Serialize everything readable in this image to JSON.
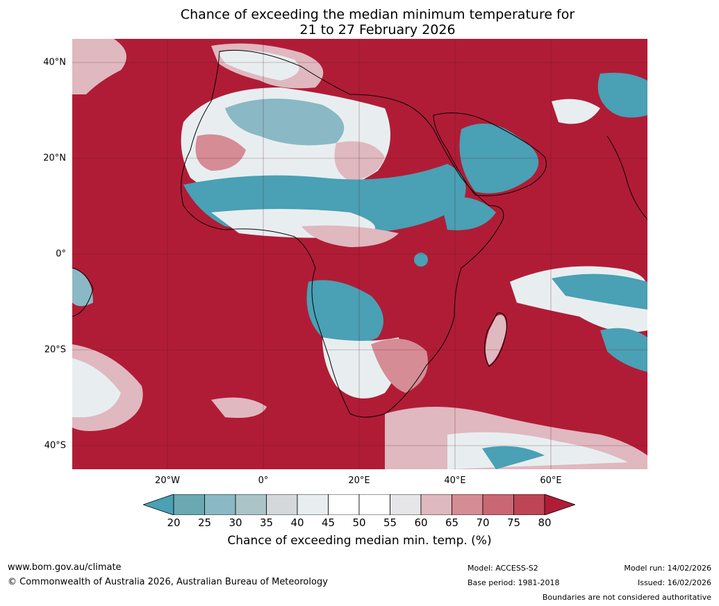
{
  "title": {
    "line1": "Chance of exceeding the median minimum temperature for",
    "line2": "21 to 27 February 2026"
  },
  "map": {
    "lat_labels": [
      "40°N",
      "20°N",
      "0°",
      "20°S",
      "40°S"
    ],
    "lon_labels": [
      "20°W",
      "0°",
      "20°E",
      "40°E",
      "60°E"
    ],
    "dominant_color": "#b01c36",
    "land_outline_color": "#000000",
    "border_color": "#808080"
  },
  "colorbar": {
    "ticks": [
      "20",
      "25",
      "30",
      "35",
      "40",
      "45",
      "50",
      "55",
      "60",
      "65",
      "70",
      "75",
      "80"
    ],
    "colors": [
      "#4aa0b4",
      "#6aa8b2",
      "#8ab8c4",
      "#aac4c8",
      "#d4d8da",
      "#e8eef0",
      "#ffffff",
      "#ffffff",
      "#e6e6e8",
      "#e0b8bf",
      "#d58c95",
      "#c96872",
      "#be4555",
      "#b01c36"
    ],
    "label": "Chance of exceeding median min. temp. (%)"
  },
  "footer": {
    "url": "www.bom.gov.au/climate",
    "copyright": "© Commonwealth of Australia 2026, Australian Bureau of Meteorology",
    "model": "Model: ACCESS-S2",
    "base_period": "Base period: 1981-2018",
    "model_run": "Model run: 14/02/2026",
    "issued": "Issued: 16/02/2026",
    "disclaimer": "Boundaries are not considered authoritative"
  }
}
